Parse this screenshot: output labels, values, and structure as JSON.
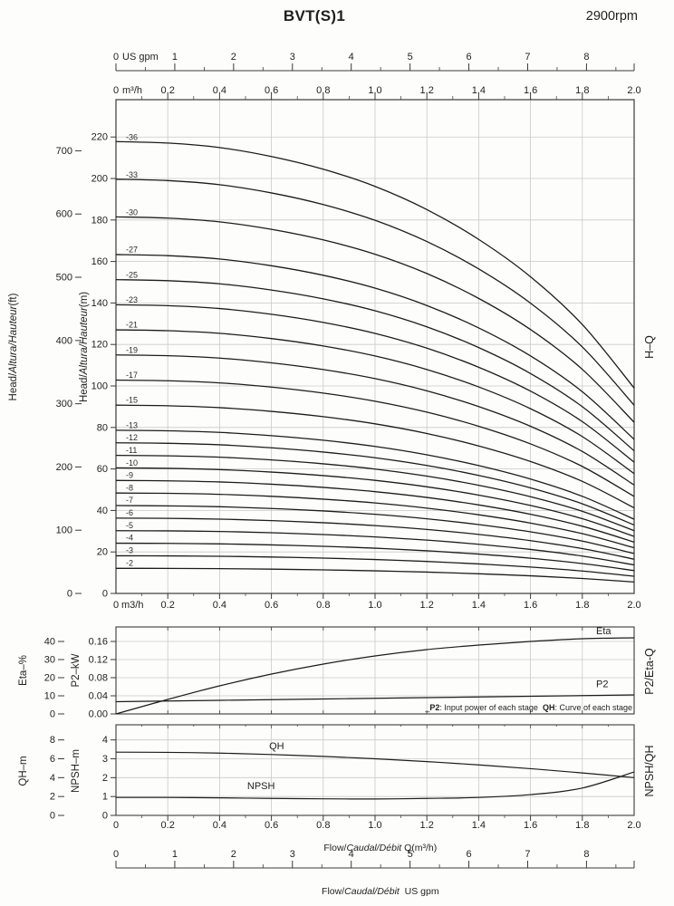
{
  "header": {
    "title": "BVT(S)1",
    "rpm": "2900rpm"
  },
  "colors": {
    "curve": "#1c1c1c",
    "grid": "#cacaca",
    "frame": "#3a3a3a",
    "text": "#1f1f1f"
  },
  "rot_labels": {
    "hq_ft": {
      "p1": "Head/",
      "p2": "Altura/Hauteur",
      "p3": "(ft)"
    },
    "hq_m": {
      "p1": "Head/",
      "p2": "Altura/Hauteur",
      "p3": "(m)"
    },
    "hq_right": "H–Q",
    "eta": "Eta–%",
    "p2kw": "P2–kW",
    "mid_right": "P2/Eta-Q",
    "qh": "QH–m",
    "npsh": "NPSH–m",
    "bot_right": "NPSH/QH"
  },
  "note": {
    "t0": "_",
    "t1": "P2",
    "t2": ": Input power of each stage  ",
    "t3": "QH",
    "t4": ": Curve of each stage"
  },
  "captions": {
    "m3h": {
      "p1": "Flow/",
      "p2": "Caudal/Débit",
      "p3": " Q(m³/h)"
    },
    "gpm": {
      "p1": "Flow/",
      "p2": "Caudal/Débit",
      "p3": "  US gpm"
    }
  },
  "chart_data": [
    {
      "type": "line",
      "name": "H-Q",
      "title": "BVT(S)1 head vs flow, 2900rpm, stages -2 to -36",
      "x_unit_gpm": "US gpm",
      "x_unit_m3h": "m³/h",
      "x_zero_bottom": "0",
      "x_unit_bottom": "m3/h",
      "x_range_m3h": [
        0,
        2.0
      ],
      "x_range_gpm": [
        0,
        8.81
      ],
      "gpm_ticks": [
        "0",
        "1",
        "2",
        "3",
        "4",
        "5",
        "6",
        "7",
        "8"
      ],
      "m3h_ticks": [
        "0.2",
        "0.4",
        "0.6",
        "0.8",
        "1.0",
        "1.2",
        "1.4",
        "1.6",
        "1.8",
        "2.0"
      ],
      "ylabel_m": "Head/Altura/Hauteur(m)",
      "ylabel_ft": "Head/Altura/Hauteur(ft)",
      "y_ticks_m": [
        "0",
        "20",
        "40",
        "60",
        "80",
        "100",
        "120",
        "140",
        "160",
        "180",
        "200",
        "220"
      ],
      "y_ticks_ft": [
        "0",
        "100",
        "200",
        "300",
        "400",
        "500",
        "600",
        "700"
      ],
      "y_max_m_axis": 238,
      "grid": true,
      "q": [
        0,
        0.2,
        0.4,
        0.6,
        0.8,
        1.0,
        1.2,
        1.4,
        1.6,
        1.8,
        2.0
      ],
      "per_stage_head_m": [
        6.05,
        6.03,
        5.97,
        5.85,
        5.68,
        5.45,
        5.14,
        4.74,
        4.24,
        3.6,
        2.75
      ],
      "stages": [
        36,
        33,
        30,
        27,
        25,
        23,
        21,
        19,
        17,
        15,
        13,
        12,
        11,
        10,
        9,
        8,
        7,
        6,
        5,
        4,
        3,
        2
      ],
      "stage_labels": [
        "-36",
        "-33",
        "-30",
        "-27",
        "-25",
        "-23",
        "-21",
        "-19",
        "-17",
        "-15",
        "-13",
        "-12",
        "-11",
        "-10",
        "-9",
        "-8",
        "-7",
        "-6",
        "-5",
        "-4",
        "-3",
        "-2"
      ]
    },
    {
      "type": "line",
      "name": "P2/Eta-Q",
      "x": [
        0,
        0.2,
        0.4,
        0.6,
        0.8,
        1.0,
        1.2,
        1.4,
        1.6,
        1.8,
        2.0
      ],
      "eta_axis": {
        "label": "Eta–%",
        "ticks": [
          "0",
          "10",
          "20",
          "30",
          "40"
        ],
        "max_axis": 48
      },
      "p2_axis": {
        "label": "P2–kW",
        "ticks": [
          "0.00",
          "0.04",
          "0.08",
          "0.12",
          "0.16"
        ],
        "max_axis": 0.192
      },
      "series": [
        {
          "name": "Eta",
          "axis": "eta",
          "values": [
            0,
            8,
            15.5,
            22,
            27.5,
            32,
            35.5,
            38,
            40,
            41.5,
            42
          ]
        },
        {
          "name": "P2",
          "axis": "p2",
          "values": [
            0.027,
            0.0285,
            0.03,
            0.0315,
            0.033,
            0.0345,
            0.036,
            0.0375,
            0.039,
            0.0405,
            0.042
          ]
        }
      ],
      "grid": true
    },
    {
      "type": "line",
      "name": "NPSH/QH",
      "x": [
        0,
        0.2,
        0.4,
        0.6,
        0.8,
        1.0,
        1.2,
        1.4,
        1.6,
        1.8,
        2.0
      ],
      "qh_axis": {
        "label": "QH–m",
        "ticks": [
          "0",
          "2",
          "4",
          "6",
          "8"
        ],
        "max_axis": 9.6
      },
      "npsh_axis": {
        "label": "NPSH–m",
        "ticks": [
          "0",
          "1",
          "2",
          "3",
          "4"
        ],
        "max_axis": 4.8
      },
      "series": [
        {
          "name": "QH",
          "axis": "qh",
          "values": [
            6.7,
            6.68,
            6.6,
            6.45,
            6.25,
            6.0,
            5.7,
            5.35,
            4.95,
            4.5,
            4.0
          ]
        },
        {
          "name": "NPSH",
          "axis": "npsh",
          "values": [
            0.95,
            0.95,
            0.93,
            0.9,
            0.88,
            0.87,
            0.9,
            0.95,
            1.1,
            1.45,
            2.3
          ]
        }
      ],
      "x_ticks": [
        "0",
        "0.2",
        "0.4",
        "0.6",
        "0.8",
        "1.0",
        "1.2",
        "1.4",
        "1.6",
        "1.8",
        "2.0"
      ],
      "gpm_ticks": [
        "0",
        "1",
        "2",
        "3",
        "4",
        "5",
        "6",
        "7",
        "8"
      ],
      "xlabel_m3h": "Flow/Caudal/Débit Q(m³/h)",
      "xlabel_gpm": "Flow/Caudal/Débit  US gpm",
      "grid": true
    }
  ]
}
